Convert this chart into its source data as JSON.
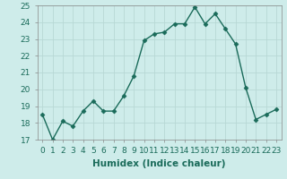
{
  "x": [
    0,
    1,
    2,
    3,
    4,
    5,
    6,
    7,
    8,
    9,
    10,
    11,
    12,
    13,
    14,
    15,
    16,
    17,
    18,
    19,
    20,
    21,
    22,
    23
  ],
  "y": [
    18.5,
    17.0,
    18.1,
    17.8,
    18.7,
    19.3,
    18.7,
    18.7,
    19.6,
    20.8,
    22.9,
    23.3,
    23.4,
    23.9,
    23.9,
    24.9,
    23.9,
    24.5,
    23.6,
    22.7,
    20.1,
    18.2,
    18.5,
    18.8
  ],
  "xlabel": "Humidex (Indice chaleur)",
  "xlim": [
    -0.5,
    23.5
  ],
  "ylim": [
    17,
    25
  ],
  "yticks": [
    17,
    18,
    19,
    20,
    21,
    22,
    23,
    24,
    25
  ],
  "xticks": [
    0,
    1,
    2,
    3,
    4,
    5,
    6,
    7,
    8,
    9,
    10,
    11,
    12,
    13,
    14,
    15,
    16,
    17,
    18,
    19,
    20,
    21,
    22,
    23
  ],
  "line_color": "#1a6b5a",
  "marker": "D",
  "marker_size": 2.5,
  "bg_color": "#ceecea",
  "grid_color": "#b8d8d5",
  "tick_fontsize": 6.5,
  "xlabel_fontsize": 7.5,
  "line_width": 1.0
}
